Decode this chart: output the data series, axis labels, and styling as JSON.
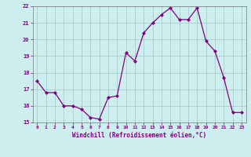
{
  "x": [
    0,
    1,
    2,
    3,
    4,
    5,
    6,
    7,
    8,
    9,
    10,
    11,
    12,
    13,
    14,
    15,
    16,
    17,
    18,
    19,
    20,
    21,
    22,
    23
  ],
  "y": [
    17.5,
    16.8,
    16.8,
    16.0,
    16.0,
    15.8,
    15.3,
    15.2,
    16.5,
    16.6,
    19.2,
    18.7,
    20.4,
    21.0,
    21.5,
    21.9,
    21.2,
    21.2,
    21.9,
    19.9,
    19.3,
    17.7,
    15.6,
    15.6
  ],
  "line_color": "#800080",
  "marker_color": "#800080",
  "bg_color": "#cceeee",
  "grid_color": "#aacccc",
  "axis_color": "#800080",
  "xlabel": "Windchill (Refroidissement éolien,°C)",
  "ylim": [
    15,
    22
  ],
  "xlim": [
    -0.5,
    23.5
  ],
  "yticks": [
    15,
    16,
    17,
    18,
    19,
    20,
    21,
    22
  ],
  "xticks": [
    0,
    1,
    2,
    3,
    4,
    5,
    6,
    7,
    8,
    9,
    10,
    11,
    12,
    13,
    14,
    15,
    16,
    17,
    18,
    19,
    20,
    21,
    22,
    23
  ],
  "figsize": [
    3.2,
    2.0
  ],
  "dpi": 100
}
